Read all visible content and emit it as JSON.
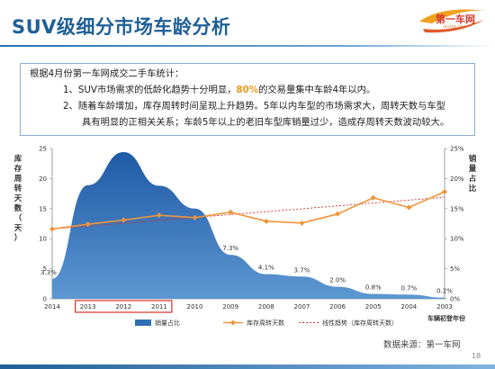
{
  "header": {
    "title": "SUV级细分市场车龄分析",
    "logo_text": "第一车网",
    "logo_sub": "iautos.cn"
  },
  "summary": {
    "intro": "根据4月份第一车网成交二手车统计：",
    "point1_prefix": "1、SUV市场需求的低龄化趋势十分明显，",
    "point1_highlight": "80%",
    "point1_suffix": "的交易量集中车龄4年以内。",
    "point2_line1": "2、随着车龄增加，库存周转时间呈现上升趋势。5年以内车型的市场需求大，周转天数与车型",
    "point2_line2": "具有明显的正相关关系；车龄5年以上的老旧车型库销量过少，造成存周转天数波动较大。"
  },
  "chart_data": {
    "type": "area+line",
    "categories": [
      "2014",
      "2013",
      "2012",
      "2011",
      "2010",
      "2009",
      "2008",
      "2007",
      "2006",
      "2005",
      "2004",
      "2003"
    ],
    "x_axis_label": "车辆初登年份",
    "highlighted_categories": [
      "2013",
      "2012",
      "2011"
    ],
    "highlight_color": "#d8322a",
    "series": [
      {
        "name": "销量占比",
        "type": "area",
        "axis": "right",
        "unit": "%",
        "color": "#2e6fb5",
        "values": [
          3.3,
          18.9,
          24.4,
          18.8,
          15.0,
          7.3,
          4.1,
          3.7,
          2.0,
          0.8,
          0.7,
          0.2
        ],
        "labels": [
          "3.3%",
          "18.9%",
          "24.4%",
          "18.8%",
          "15.0%",
          "7.3%",
          "4.1%",
          "3.7%",
          "2.0%",
          "0.8%",
          "0.7%",
          "0.2%"
        ]
      },
      {
        "name": "库存周转天数",
        "type": "line",
        "axis": "left",
        "color": "#f0943a",
        "values": [
          11.6,
          12.4,
          13.1,
          13.9,
          13.5,
          14.4,
          12.9,
          12.6,
          14.1,
          16.8,
          15.2,
          17.8
        ]
      },
      {
        "name": "线性趋势（库存周转天数）",
        "type": "trend",
        "axis": "left",
        "color": "#d8322a",
        "start": 11.6,
        "end": 16.9
      }
    ],
    "y_left": {
      "label": "库存周转天数（天）",
      "min": 0,
      "max": 25,
      "ticks": [
        "0",
        "5",
        "10",
        "15",
        "20",
        "25"
      ]
    },
    "y_right": {
      "label": "销量占比",
      "min": 0,
      "max": 25,
      "ticks": [
        "0%",
        "5%",
        "10%",
        "15%",
        "20%",
        "25%"
      ]
    },
    "grid": false,
    "legend_position": "bottom"
  },
  "footer": {
    "source": "数据来源：第一车网",
    "page": "18"
  }
}
